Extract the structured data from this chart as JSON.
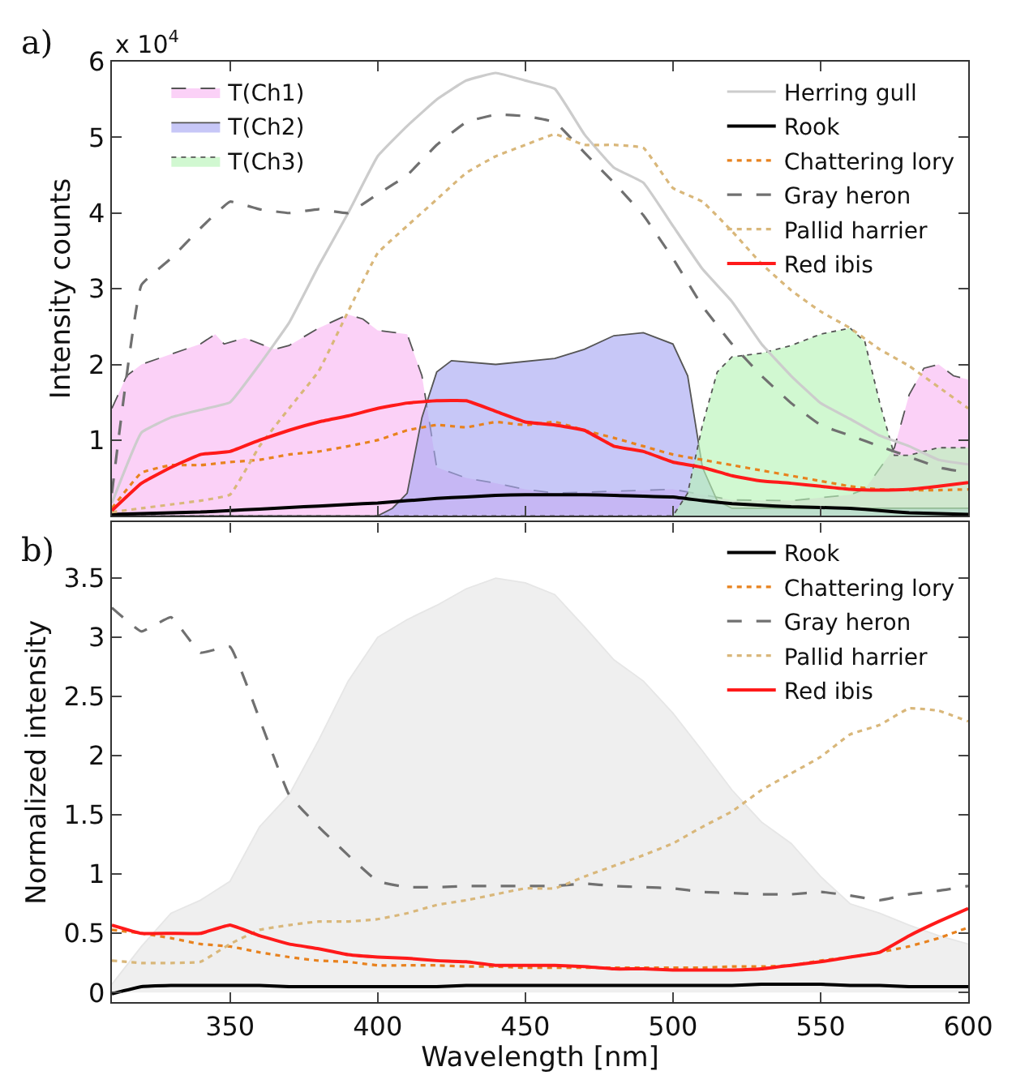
{
  "chart_data": [
    {
      "type": "line",
      "ylabel": "Intensity counts",
      "annotations": [
        "a)",
        "x 10$^{4}$"
      ],
      "x": [
        310,
        320,
        330,
        340,
        350,
        360,
        370,
        380,
        390,
        400,
        410,
        420,
        430,
        440,
        450,
        460,
        470,
        480,
        490,
        500,
        510,
        520,
        530,
        540,
        550,
        560,
        570,
        580,
        590,
        600
      ],
      "xlim": [
        310,
        600
      ],
      "xticks": [
        {
          "value": 350,
          "label": null
        },
        {
          "value": 400,
          "label": null
        },
        {
          "value": 450,
          "label": null
        },
        {
          "value": 500,
          "label": null
        },
        {
          "value": 550,
          "label": null
        },
        {
          "value": 600,
          "label": null
        }
      ],
      "ylim": [
        0,
        6
      ],
      "yticks": [
        1,
        2,
        3,
        4,
        5,
        6
      ],
      "tick_labels": "y",
      "legend": "top right",
      "series": [
        {
          "name": "T(Ch1)",
          "type": "area",
          "line_style": "dashed",
          "color": "#f9b8f3",
          "x": [
            310,
            315,
            320,
            340,
            345,
            348,
            355,
            365,
            370,
            380,
            390,
            395,
            400,
            410,
            415,
            420,
            430,
            440,
            450,
            460,
            500,
            520,
            540,
            560,
            565,
            575,
            580,
            585,
            590,
            595,
            600
          ],
          "values": [
            1.42,
            1.85,
            2.0,
            2.27,
            2.4,
            2.27,
            2.35,
            2.2,
            2.25,
            2.48,
            2.66,
            2.6,
            2.45,
            2.4,
            1.85,
            0.64,
            0.5,
            0.43,
            0.35,
            0.3,
            0.35,
            0.21,
            0.2,
            0.28,
            0.35,
            0.9,
            1.6,
            1.95,
            2.0,
            1.85,
            1.8
          ]
        },
        {
          "name": "T(Ch2)",
          "type": "area",
          "line_style": "solid",
          "color": "#a9a9f3",
          "x": [
            310,
            400,
            405,
            410,
            415,
            420,
            425,
            440,
            460,
            470,
            480,
            490,
            500,
            505,
            510,
            515,
            520,
            600
          ],
          "values": [
            0,
            0,
            0.1,
            0.3,
            1.3,
            1.9,
            2.05,
            2.0,
            2.08,
            2.2,
            2.38,
            2.42,
            2.27,
            1.85,
            0.64,
            0.2,
            0.1,
            0.1
          ]
        },
        {
          "name": "T(Ch3)",
          "type": "area",
          "line_style": "dotted",
          "color": "#b8f5b8",
          "x": [
            310,
            500,
            505,
            510,
            515,
            520,
            530,
            540,
            550,
            560,
            565,
            570,
            575,
            580,
            590,
            600
          ],
          "values": [
            0,
            0,
            0.3,
            1.2,
            1.9,
            2.1,
            2.15,
            2.25,
            2.4,
            2.48,
            2.3,
            1.5,
            0.8,
            0.8,
            0.9,
            0.9
          ]
        },
        {
          "name": "Herring gull",
          "color": "#cccccc",
          "line_style": "solid",
          "values": [
            0.17,
            1.1,
            1.3,
            1.4,
            1.5,
            2.0,
            2.55,
            3.3,
            4.0,
            4.75,
            5.15,
            5.5,
            5.75,
            5.85,
            5.75,
            5.64,
            5.04,
            4.6,
            4.4,
            3.83,
            3.26,
            2.83,
            2.27,
            1.85,
            1.49,
            1.28,
            1.06,
            0.92,
            0.74,
            0.68
          ]
        },
        {
          "name": "Rook",
          "color": "#000000",
          "line_style": "solid",
          "values": [
            0.02,
            0.03,
            0.04,
            0.05,
            0.07,
            0.09,
            0.11,
            0.13,
            0.15,
            0.17,
            0.2,
            0.23,
            0.25,
            0.27,
            0.28,
            0.28,
            0.28,
            0.27,
            0.26,
            0.25,
            0.2,
            0.16,
            0.14,
            0.12,
            0.11,
            0.1,
            0.07,
            0.04,
            0.03,
            0.02
          ]
        },
        {
          "name": "Chattering lory",
          "color": "#e8821e",
          "line_style": "dotted",
          "values": [
            0.1,
            0.57,
            0.67,
            0.67,
            0.71,
            0.74,
            0.81,
            0.85,
            0.92,
            1.0,
            1.13,
            1.2,
            1.17,
            1.24,
            1.2,
            1.24,
            1.13,
            1.03,
            0.92,
            0.81,
            0.74,
            0.67,
            0.6,
            0.53,
            0.46,
            0.39,
            0.35,
            0.34,
            0.34,
            0.35
          ]
        },
        {
          "name": "Gray heron",
          "color": "#707070",
          "line_style": "dashed",
          "values": [
            0.3,
            3.05,
            3.4,
            3.8,
            4.15,
            4.05,
            4.0,
            4.05,
            4.0,
            4.25,
            4.5,
            4.9,
            5.2,
            5.3,
            5.28,
            5.2,
            4.8,
            4.4,
            3.97,
            3.4,
            2.77,
            2.27,
            1.85,
            1.49,
            1.2,
            1.06,
            0.92,
            0.78,
            0.64,
            0.57
          ]
        },
        {
          "name": "Pallid harrier",
          "color": "#d9b77a",
          "line_style": "dotted",
          "values": [
            0.05,
            0.1,
            0.15,
            0.2,
            0.28,
            0.92,
            1.42,
            1.91,
            2.7,
            3.47,
            3.83,
            4.18,
            4.53,
            4.75,
            4.9,
            5.04,
            4.9,
            4.9,
            4.86,
            4.33,
            4.15,
            3.76,
            3.33,
            2.98,
            2.7,
            2.48,
            2.2,
            1.98,
            1.7,
            1.42
          ]
        },
        {
          "name": "Red ibis",
          "color": "#ff1a1a",
          "line_style": "solid",
          "values": [
            0.07,
            0.43,
            0.64,
            0.81,
            0.85,
            1.0,
            1.13,
            1.24,
            1.32,
            1.42,
            1.49,
            1.52,
            1.52,
            1.38,
            1.24,
            1.2,
            1.13,
            0.92,
            0.85,
            0.71,
            0.64,
            0.53,
            0.46,
            0.43,
            0.39,
            0.35,
            0.34,
            0.35,
            0.39,
            0.44
          ]
        }
      ]
    },
    {
      "type": "line",
      "xlabel": "Wavelength [nm]",
      "ylabel": "Normalized intensity",
      "annotations": [
        "b)"
      ],
      "x": [
        310,
        320,
        330,
        340,
        350,
        360,
        370,
        380,
        390,
        400,
        410,
        420,
        430,
        440,
        450,
        460,
        470,
        480,
        490,
        500,
        510,
        520,
        530,
        540,
        550,
        560,
        570,
        580,
        590,
        600
      ],
      "xlim": [
        310,
        600
      ],
      "xticks": [
        350,
        400,
        450,
        500,
        550,
        600
      ],
      "ylim": [
        -0.08,
        3.97
      ],
      "yticks": [
        0,
        0.5,
        1,
        1.5,
        2,
        2.5,
        3,
        3.5
      ],
      "legend": "top right",
      "series": [
        {
          "type": "area",
          "color": "#e6e6e6",
          "line_style": "solid",
          "values": [
            0.07,
            0.39,
            0.67,
            0.78,
            0.94,
            1.4,
            1.67,
            2.13,
            2.63,
            3.0,
            3.15,
            3.27,
            3.41,
            3.5,
            3.46,
            3.36,
            3.09,
            2.81,
            2.63,
            2.36,
            2.04,
            1.71,
            1.44,
            1.26,
            0.98,
            0.75,
            0.67,
            0.57,
            0.48,
            0.41
          ]
        },
        {
          "name": "Rook",
          "color": "#000000",
          "line_style": "solid",
          "values": [
            -0.01,
            0.05,
            0.06,
            0.06,
            0.06,
            0.06,
            0.05,
            0.05,
            0.05,
            0.05,
            0.05,
            0.05,
            0.06,
            0.06,
            0.06,
            0.06,
            0.06,
            0.06,
            0.06,
            0.06,
            0.06,
            0.06,
            0.07,
            0.07,
            0.07,
            0.06,
            0.06,
            0.05,
            0.05,
            0.05
          ]
        },
        {
          "name": "Chattering lory",
          "color": "#e8821e",
          "line_style": "dotted",
          "values": [
            0.53,
            0.5,
            0.46,
            0.41,
            0.39,
            0.34,
            0.3,
            0.27,
            0.26,
            0.23,
            0.23,
            0.23,
            0.22,
            0.22,
            0.21,
            0.21,
            0.21,
            0.21,
            0.21,
            0.21,
            0.21,
            0.22,
            0.22,
            0.23,
            0.27,
            0.3,
            0.34,
            0.39,
            0.46,
            0.55
          ]
        },
        {
          "name": "Gray heron",
          "color": "#707070",
          "line_style": "dashed",
          "values": [
            3.25,
            3.05,
            3.17,
            2.87,
            2.92,
            2.31,
            1.67,
            1.4,
            1.16,
            0.94,
            0.89,
            0.89,
            0.9,
            0.9,
            0.9,
            0.9,
            0.92,
            0.9,
            0.89,
            0.88,
            0.85,
            0.84,
            0.83,
            0.83,
            0.85,
            0.82,
            0.78,
            0.83,
            0.86,
            0.9
          ]
        },
        {
          "name": "Pallid harrier",
          "color": "#d9b77a",
          "line_style": "dotted",
          "values": [
            0.27,
            0.25,
            0.25,
            0.26,
            0.41,
            0.53,
            0.57,
            0.6,
            0.6,
            0.62,
            0.67,
            0.74,
            0.78,
            0.83,
            0.88,
            0.88,
            0.98,
            1.07,
            1.16,
            1.26,
            1.4,
            1.53,
            1.71,
            1.85,
            1.99,
            2.18,
            2.26,
            2.4,
            2.38,
            2.29
          ]
        },
        {
          "name": "Red ibis",
          "color": "#ff1a1a",
          "line_style": "solid",
          "values": [
            0.57,
            0.5,
            0.5,
            0.5,
            0.57,
            0.48,
            0.41,
            0.37,
            0.32,
            0.3,
            0.29,
            0.27,
            0.26,
            0.23,
            0.23,
            0.23,
            0.22,
            0.2,
            0.2,
            0.19,
            0.19,
            0.19,
            0.2,
            0.23,
            0.26,
            0.3,
            0.34,
            0.48,
            0.6,
            0.71
          ]
        }
      ]
    }
  ]
}
